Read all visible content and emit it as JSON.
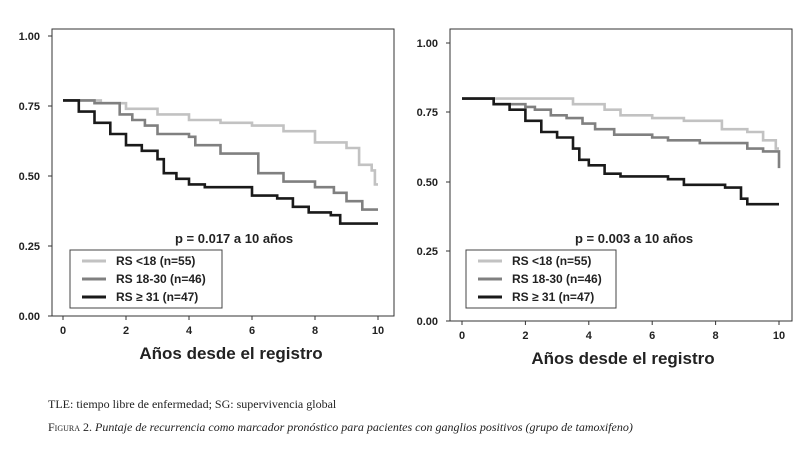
{
  "chart_data": [
    {
      "type": "line",
      "step": true,
      "xlabel": "Años desde el registro",
      "ylabel": "",
      "xlim": [
        0,
        10
      ],
      "ylim": [
        0,
        1
      ],
      "xticks": [
        "0",
        "2",
        "4",
        "6",
        "8",
        "10"
      ],
      "yticks": [
        "0.00",
        "0.25",
        "0.50",
        "0.75",
        "1.00"
      ],
      "annotation": "p = 0.017 a 10 años",
      "legend_position": "bottom-left",
      "series": [
        {
          "name": "RS <18 (n=55)",
          "color": "#c2c2c2",
          "points": [
            [
              0,
              0.77
            ],
            [
              1.2,
              0.76
            ],
            [
              2,
              0.74
            ],
            [
              3,
              0.72
            ],
            [
              4,
              0.7
            ],
            [
              5,
              0.69
            ],
            [
              6,
              0.68
            ],
            [
              7,
              0.66
            ],
            [
              8,
              0.62
            ],
            [
              9,
              0.6
            ],
            [
              9.4,
              0.54
            ],
            [
              9.8,
              0.52
            ],
            [
              9.9,
              0.47
            ],
            [
              10,
              0.47
            ]
          ]
        },
        {
          "name": "RS 18-30 (n=46)",
          "color": "#808080",
          "points": [
            [
              0,
              0.77
            ],
            [
              1,
              0.76
            ],
            [
              1.8,
              0.72
            ],
            [
              2.2,
              0.7
            ],
            [
              2.6,
              0.68
            ],
            [
              3,
              0.65
            ],
            [
              4,
              0.64
            ],
            [
              4.2,
              0.61
            ],
            [
              5,
              0.58
            ],
            [
              6.2,
              0.51
            ],
            [
              7,
              0.48
            ],
            [
              8,
              0.46
            ],
            [
              8.6,
              0.44
            ],
            [
              9,
              0.41
            ],
            [
              9.5,
              0.38
            ],
            [
              10,
              0.38
            ]
          ]
        },
        {
          "name": "RS ≥ 31 (n=47)",
          "color": "#1a1a1a",
          "points": [
            [
              0,
              0.77
            ],
            [
              0.5,
              0.73
            ],
            [
              1,
              0.69
            ],
            [
              1.5,
              0.65
            ],
            [
              2,
              0.61
            ],
            [
              2.5,
              0.59
            ],
            [
              3,
              0.56
            ],
            [
              3.2,
              0.51
            ],
            [
              3.6,
              0.49
            ],
            [
              4,
              0.47
            ],
            [
              4.5,
              0.46
            ],
            [
              5,
              0.46
            ],
            [
              6,
              0.43
            ],
            [
              6.8,
              0.42
            ],
            [
              7.3,
              0.39
            ],
            [
              7.8,
              0.37
            ],
            [
              8.5,
              0.36
            ],
            [
              8.8,
              0.33
            ],
            [
              10,
              0.33
            ]
          ]
        }
      ]
    },
    {
      "type": "line",
      "step": true,
      "xlabel": "Años desde el registro",
      "ylabel": "",
      "xlim": [
        0,
        10
      ],
      "ylim": [
        0,
        1
      ],
      "xticks": [
        "0",
        "2",
        "4",
        "6",
        "8",
        "10"
      ],
      "yticks": [
        "0.00",
        "0.25",
        "0.50",
        "0.75",
        "1.00"
      ],
      "annotation": "p = 0.003 a 10 años",
      "legend_position": "bottom-left",
      "series": [
        {
          "name": "RS <18 (n=55)",
          "color": "#c2c2c2",
          "points": [
            [
              0,
              0.8
            ],
            [
              3.5,
              0.78
            ],
            [
              4.5,
              0.76
            ],
            [
              5,
              0.74
            ],
            [
              6,
              0.73
            ],
            [
              7,
              0.72
            ],
            [
              8.2,
              0.69
            ],
            [
              9,
              0.68
            ],
            [
              9.5,
              0.65
            ],
            [
              9.9,
              0.62
            ],
            [
              10,
              0.62
            ]
          ]
        },
        {
          "name": "RS 18-30 (n=46)",
          "color": "#808080",
          "points": [
            [
              0,
              0.8
            ],
            [
              1,
              0.78
            ],
            [
              2,
              0.77
            ],
            [
              2.3,
              0.76
            ],
            [
              2.8,
              0.74
            ],
            [
              3.3,
              0.73
            ],
            [
              3.8,
              0.71
            ],
            [
              4.2,
              0.69
            ],
            [
              4.8,
              0.67
            ],
            [
              6,
              0.66
            ],
            [
              6.5,
              0.65
            ],
            [
              7.5,
              0.64
            ],
            [
              9,
              0.62
            ],
            [
              9.5,
              0.61
            ],
            [
              10,
              0.57
            ],
            [
              10,
              0.55
            ]
          ]
        },
        {
          "name": "RS ≥ 31 (n=47)",
          "color": "#1a1a1a",
          "points": [
            [
              0,
              0.8
            ],
            [
              1,
              0.78
            ],
            [
              1.5,
              0.76
            ],
            [
              2,
              0.72
            ],
            [
              2.5,
              0.68
            ],
            [
              3,
              0.66
            ],
            [
              3.5,
              0.62
            ],
            [
              3.7,
              0.58
            ],
            [
              4,
              0.56
            ],
            [
              4.5,
              0.53
            ],
            [
              5,
              0.52
            ],
            [
              6.5,
              0.51
            ],
            [
              7,
              0.49
            ],
            [
              8.3,
              0.48
            ],
            [
              8.8,
              0.44
            ],
            [
              9,
              0.42
            ],
            [
              10,
              0.42
            ]
          ]
        }
      ]
    }
  ],
  "captions": {
    "abbreviations": "TLE: tiempo libre de enfermedad; SG: supervivencia global",
    "figure_label": "Figura",
    "figure_number": "2.",
    "figure_text": "Puntaje de recurrencia como marcador pronóstico para pacientes con ganglios positivos (grupo de tamoxifeno)"
  }
}
